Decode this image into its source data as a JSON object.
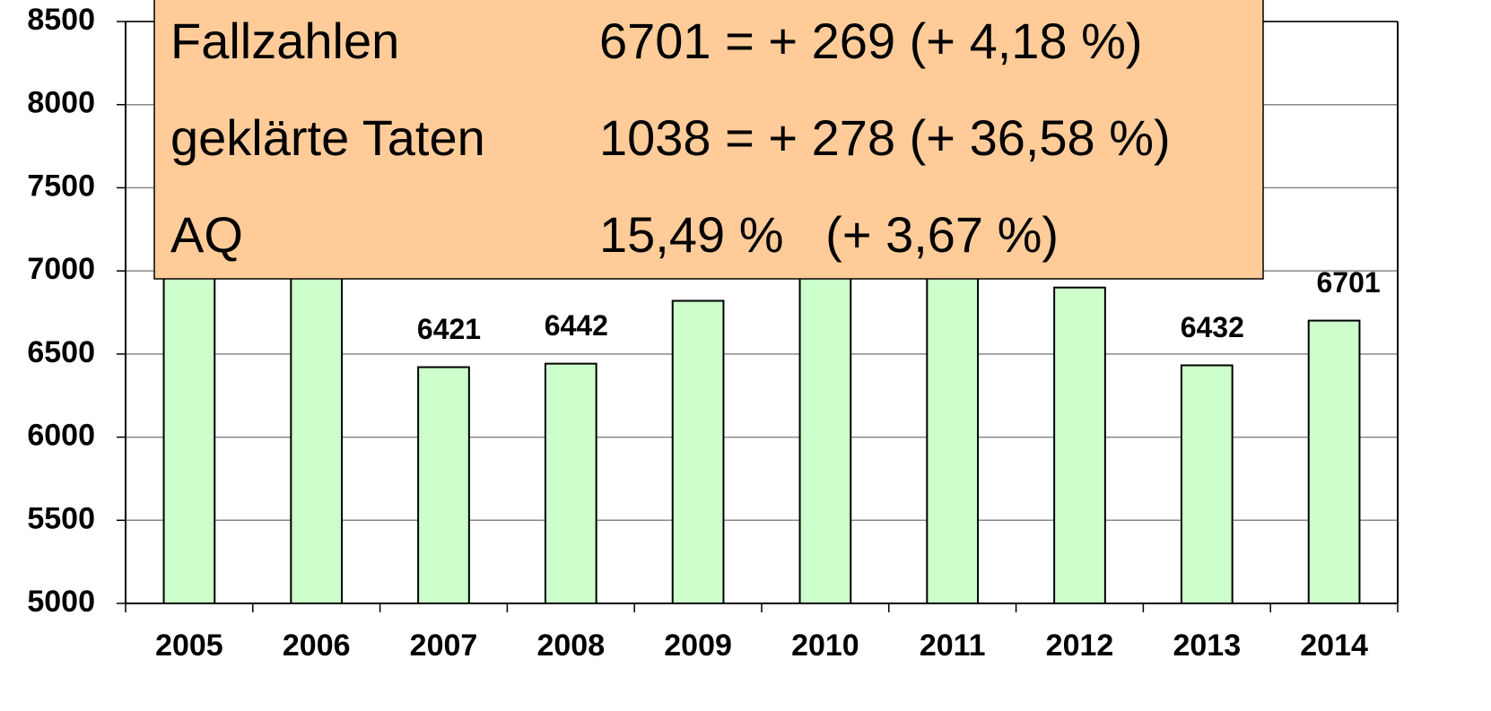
{
  "chart_data": {
    "type": "bar",
    "categories": [
      "2005",
      "2006",
      "2007",
      "2008",
      "2009",
      "2010",
      "2011",
      "2012",
      "2013",
      "2014"
    ],
    "values": [
      7250,
      7150,
      6421,
      6442,
      6820,
      7300,
      7200,
      6900,
      6432,
      6701
    ],
    "value_labels": [
      null,
      null,
      "6421",
      "6442",
      null,
      null,
      null,
      null,
      "6432",
      "6701"
    ],
    "color": "#ccffcc",
    "ylim": [
      5000,
      8500
    ],
    "yticks": [
      5000,
      5500,
      6000,
      6500,
      7000,
      7500,
      8000,
      8500
    ],
    "grid": true,
    "annotations": [
      [
        "Fallzahlen",
        "6701 = + 269 (+ 4,18 %)"
      ],
      [
        "geklärte Taten",
        "1038 = + 278 (+ 36,58 %)"
      ],
      [
        "AQ",
        "15,49 %   (+ 3,67 %)"
      ]
    ],
    "annotation_color": "#ffcc99"
  }
}
